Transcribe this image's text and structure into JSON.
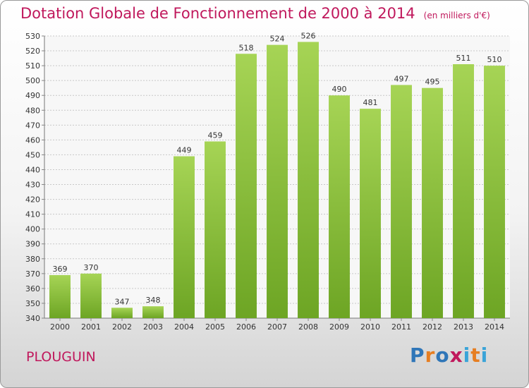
{
  "title": "Dotation Globale de Fonctionnement de 2000 à 2014",
  "unit_note": "(en milliers d'€)",
  "commune": "PLOUGUIN",
  "logo": {
    "text": "Proxiti",
    "letter_colors": [
      "#2f76b8",
      "#e67e22",
      "#2f76b8",
      "#c0185c",
      "#3aa4d8",
      "#e67e22",
      "#3aa4d8"
    ]
  },
  "colors": {
    "title": "#c0185c",
    "bar_light": "#a6d455",
    "bar_dark": "#6da524",
    "grid": "#c8c8c8"
  },
  "chart_data": {
    "type": "bar",
    "title": "Dotation Globale de Fonctionnement de 2000 à 2014",
    "subtitle": "(en milliers d'€)",
    "categories": [
      "2000",
      "2001",
      "2002",
      "2003",
      "2004",
      "2005",
      "2006",
      "2007",
      "2008",
      "2009",
      "2010",
      "2011",
      "2012",
      "2013",
      "2014"
    ],
    "values": [
      369,
      370,
      347,
      348,
      449,
      459,
      518,
      524,
      526,
      490,
      481,
      497,
      495,
      511,
      510
    ],
    "ylim": [
      340,
      530
    ],
    "yticks": [
      340,
      350,
      360,
      370,
      380,
      390,
      400,
      410,
      420,
      430,
      440,
      450,
      460,
      470,
      480,
      490,
      500,
      510,
      520,
      530
    ],
    "grid": true,
    "xlabel": "",
    "ylabel": ""
  }
}
